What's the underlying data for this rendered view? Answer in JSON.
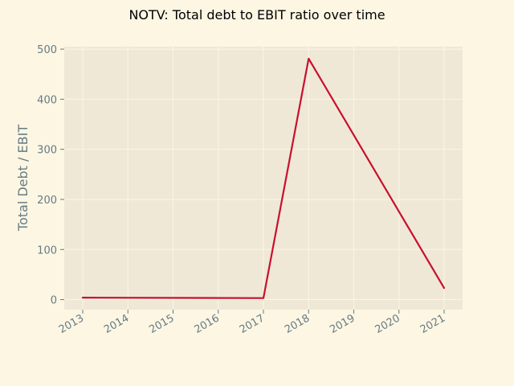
{
  "chart_data": {
    "type": "line",
    "title": "NOTV: Total debt to EBIT ratio over time",
    "xlabel": "",
    "ylabel": "Total Debt / EBIT",
    "x": [
      "2013",
      "2014",
      "2015",
      "2016",
      "2017",
      "2018",
      "2019",
      "2020",
      "2021"
    ],
    "x_ticks": [
      "2013",
      "2014",
      "2015",
      "2016",
      "2017",
      "2018",
      "2019",
      "2020",
      "2021"
    ],
    "series": [
      {
        "points": [
          {
            "x": "2013",
            "y": 4
          },
          {
            "x": "2017",
            "y": 3
          },
          {
            "x": "2018",
            "y": 481
          },
          {
            "x": "2021",
            "y": 23
          }
        ]
      }
    ],
    "y_ticks": [
      0,
      100,
      200,
      300,
      400,
      500
    ],
    "ylim": [
      -20,
      505
    ],
    "grid": true,
    "colors": {
      "figure_bg": "#fdf6e3",
      "axes_bg": "#efe8d6",
      "grid": "#fdf6e3",
      "line": "#c8102e",
      "text": "#657b83"
    }
  }
}
